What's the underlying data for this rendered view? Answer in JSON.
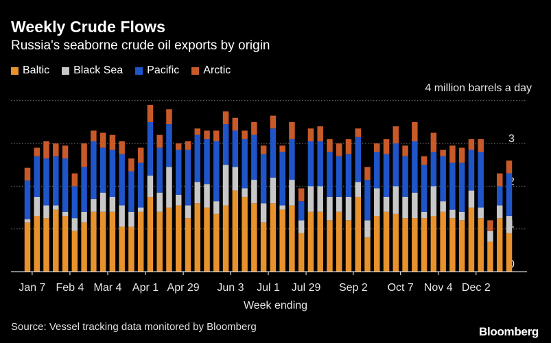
{
  "header": {
    "title": "Weekly Crude Flows",
    "subtitle": "Russia's seaborne crude oil exports by origin",
    "unit_note": "4 million barrels a day"
  },
  "footer": {
    "source": "Source: Vessel tracking data monitored by Bloomberg",
    "logo": "Bloomberg"
  },
  "colors": {
    "Baltic": "#e8922d",
    "Black Sea": "#c8c8c8",
    "Pacific": "#1f55c8",
    "Arctic": "#c85a2a",
    "grid": "#7a7a7a",
    "axis": "#ffffff"
  },
  "chart_data": {
    "type": "bar",
    "stacked": true,
    "title": "Weekly Crude Flows",
    "subtitle": "Russia's seaborne crude oil exports by origin",
    "xlabel": "Week ending",
    "ylabel": "4 million barrels a day",
    "ylim": [
      0,
      4
    ],
    "yticks": [
      0,
      1,
      2,
      3
    ],
    "grid": true,
    "legend_position": "top-left",
    "x_tick_labels": [
      "Jan 7",
      "Feb 4",
      "Mar 4",
      "Apr 1",
      "Apr 29",
      "Jun 3",
      "Jul 1",
      "Jul 29",
      "Sep 2",
      "Oct 7",
      "Nov 4",
      "Dec 2"
    ],
    "x_tick_positions": [
      1,
      5,
      9,
      13,
      17,
      22,
      26,
      30,
      35,
      40,
      44,
      48
    ],
    "series": [
      {
        "name": "Baltic",
        "values": [
          1.15,
          1.3,
          1.25,
          1.45,
          1.3,
          0.95,
          1.15,
          1.4,
          1.4,
          1.4,
          1.05,
          1.05,
          1.4,
          1.75,
          1.4,
          1.5,
          1.55,
          1.25,
          1.6,
          1.5,
          1.35,
          1.55,
          1.9,
          1.75,
          1.6,
          1.15,
          1.6,
          1.45,
          1.55,
          0.9,
          1.4,
          1.4,
          1.2,
          1.4,
          1.2,
          1.75,
          0.8,
          1.3,
          1.4,
          1.35,
          1.25,
          1.25,
          1.25,
          1.3,
          1.4,
          1.25,
          1.2,
          1.5,
          1.25,
          0.7,
          1.25,
          0.9
        ]
      },
      {
        "name": "Black Sea",
        "values": [
          0.08,
          0.45,
          0.3,
          0.1,
          0.1,
          0.3,
          0.25,
          0.3,
          0.45,
          0.35,
          0.5,
          0.35,
          0.1,
          0.5,
          0.45,
          0.95,
          0.25,
          0.3,
          0.5,
          0.55,
          0.3,
          0.95,
          0.55,
          0.2,
          0.55,
          0.45,
          0.6,
          0.1,
          0.6,
          0.3,
          0.6,
          0.6,
          0.55,
          0.35,
          0.55,
          0.35,
          0.4,
          0.65,
          0.35,
          0.65,
          0.5,
          0.6,
          0.15,
          0.7,
          0.25,
          0.2,
          0.2,
          0.4,
          0.25,
          0.25,
          0.3,
          0.4
        ]
      },
      {
        "name": "Black Sea_",
        "values": []
      },
      {
        "name": "Pacific",
        "values": [
          0.9,
          0.95,
          1.1,
          1.15,
          1.25,
          0.75,
          1.05,
          1.35,
          1.05,
          1.1,
          1.2,
          0.95,
          1.05,
          1.25,
          1.05,
          1.0,
          1.05,
          1.3,
          1.1,
          1.05,
          1.4,
          0.95,
          0.85,
          1.15,
          1.05,
          1.15,
          1.15,
          1.25,
          0.95,
          0.45,
          1.05,
          1.05,
          1.05,
          0.95,
          1.0,
          1.05,
          0.95,
          0.85,
          1.0,
          1.0,
          0.95,
          1.2,
          1.1,
          0.8,
          1.05,
          1.1,
          1.15,
          0.95,
          1.3,
          0.0,
          0.45,
          1.0
        ]
      },
      {
        "name": "Arctic",
        "values": [
          0.3,
          0.2,
          0.4,
          0.3,
          0.3,
          0.3,
          0.55,
          0.25,
          0.35,
          0.35,
          0.3,
          0.3,
          0.35,
          0.4,
          0.3,
          0.35,
          0.15,
          0.2,
          0.15,
          0.2,
          0.25,
          0.3,
          0.3,
          0.2,
          0.3,
          0.2,
          0.3,
          0.15,
          0.4,
          0.3,
          0.3,
          0.35,
          0.3,
          0.3,
          0.35,
          0.2,
          0.3,
          0.2,
          0.35,
          0.4,
          0.25,
          0.45,
          0.2,
          0.45,
          0.15,
          0.4,
          0.35,
          0.25,
          0.3,
          0.25,
          0.3,
          0.3
        ]
      }
    ],
    "categories_count": 52
  }
}
